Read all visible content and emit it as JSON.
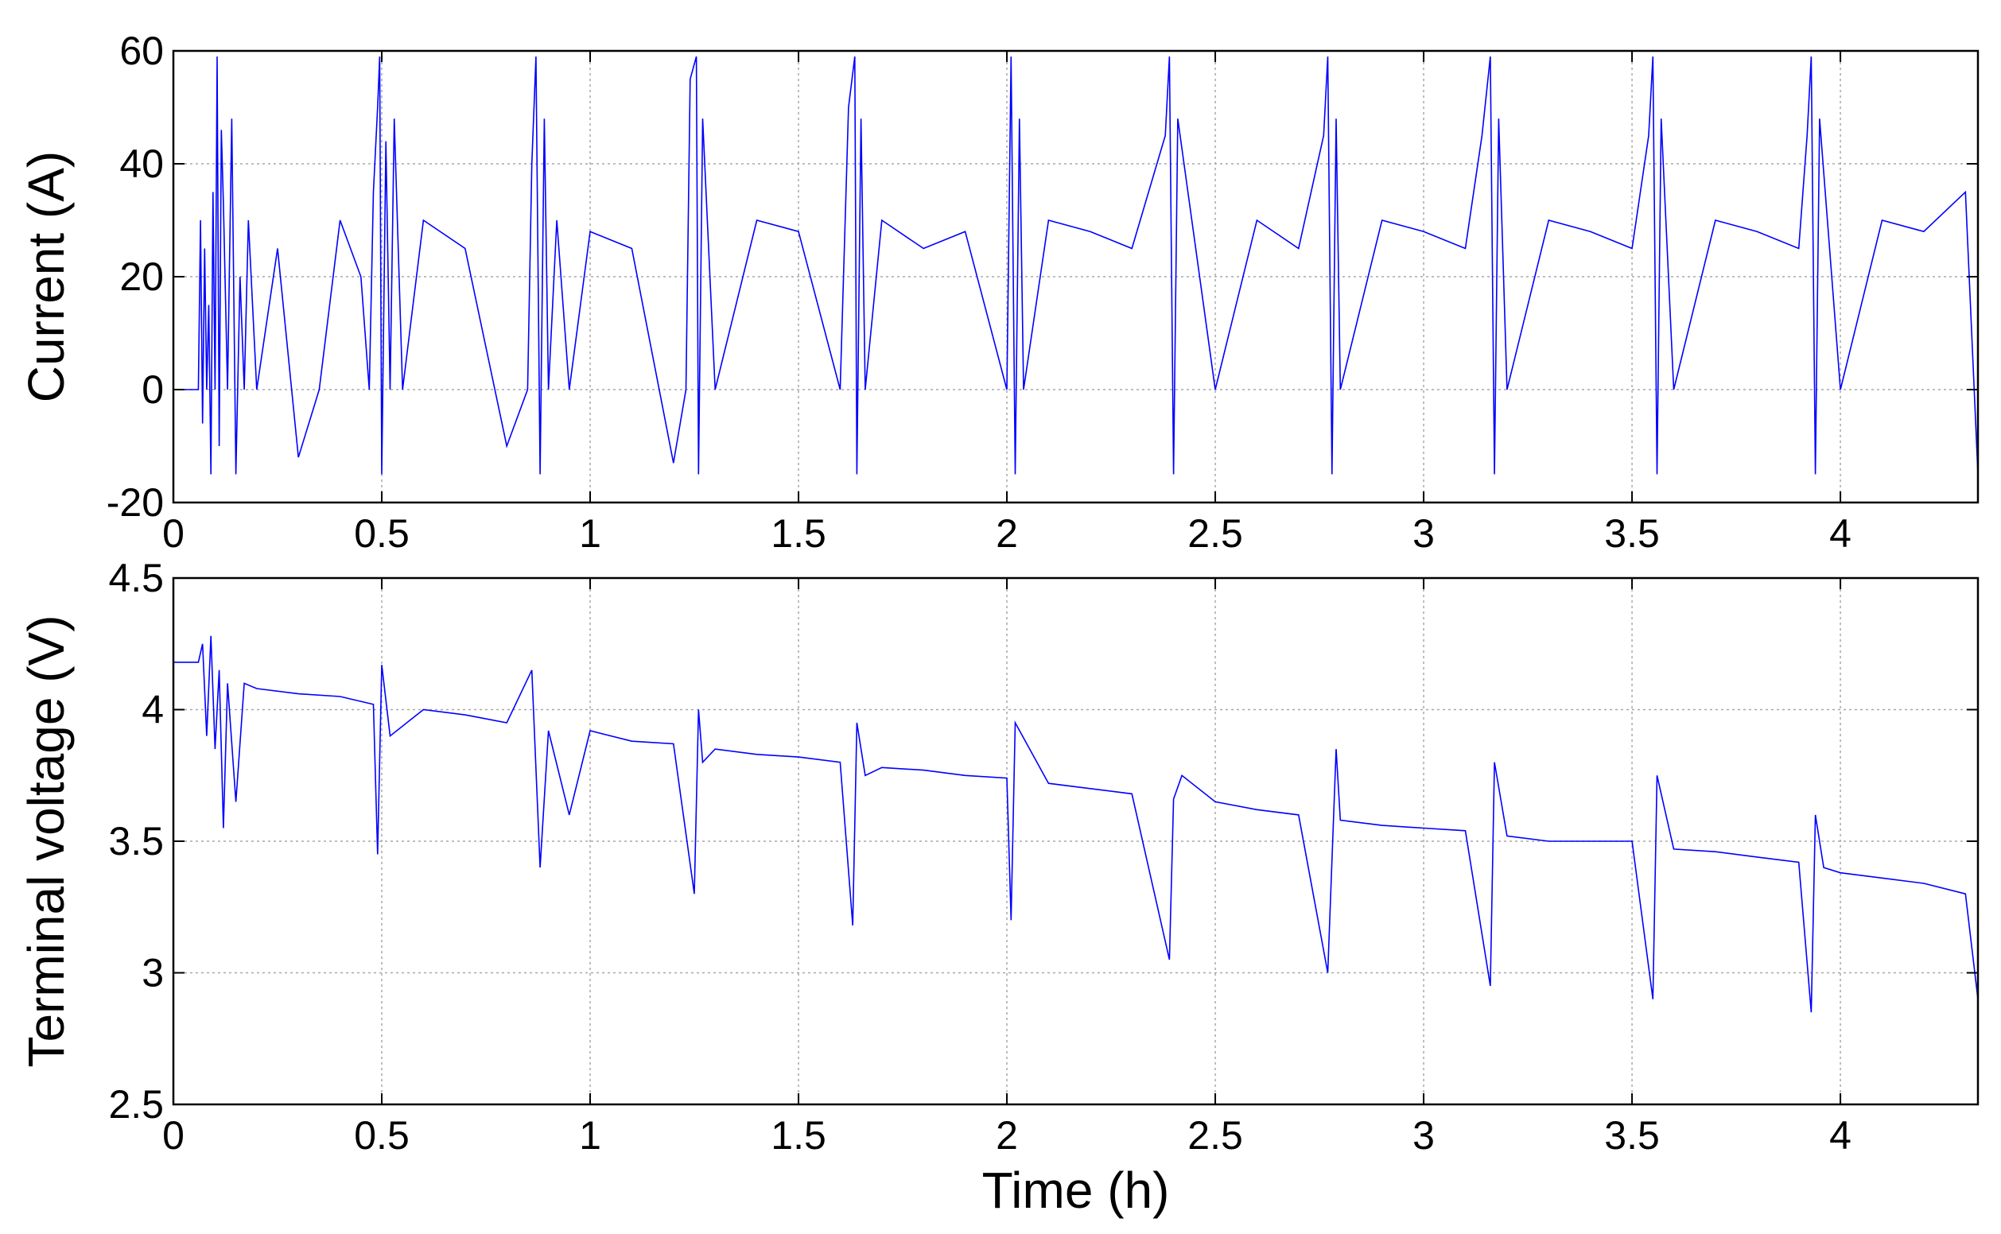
{
  "chart_data": [
    {
      "type": "line",
      "title": "",
      "xlabel": "",
      "ylabel": "Current (A)",
      "xlim": [
        0,
        4.33
      ],
      "ylim": [
        -20,
        60
      ],
      "xticks": [
        0,
        0.5,
        1,
        1.5,
        2,
        2.5,
        3,
        3.5,
        4
      ],
      "xtick_labels": [
        "0",
        "0.5",
        "1",
        "1.5",
        "2",
        "2.5",
        "3",
        "3.5",
        "4"
      ],
      "yticks": [
        -20,
        0,
        20,
        40,
        60
      ],
      "ytick_labels": [
        "-20",
        "0",
        "20",
        "40",
        "60"
      ],
      "grid": true,
      "line_color": "#0000ff",
      "series": [
        {
          "x": [
            0,
            0.06,
            0.065,
            0.07,
            0.075,
            0.08,
            0.085,
            0.09,
            0.095,
            0.1,
            0.105,
            0.11,
            0.115,
            0.12,
            0.13,
            0.14,
            0.15,
            0.16,
            0.17,
            0.18,
            0.2,
            0.25,
            0.3,
            0.35,
            0.4,
            0.45,
            0.47,
            0.48,
            0.49,
            0.495,
            0.5,
            0.51,
            0.52,
            0.53,
            0.55,
            0.6,
            0.7,
            0.8,
            0.85,
            0.86,
            0.87,
            0.88,
            0.89,
            0.9,
            0.92,
            0.95,
            1.0,
            1.1,
            1.2,
            1.23,
            1.24,
            1.255,
            1.26,
            1.27,
            1.3,
            1.4,
            1.5,
            1.6,
            1.62,
            1.635,
            1.64,
            1.65,
            1.66,
            1.7,
            1.8,
            1.9,
            2.0,
            2.01,
            2.02,
            2.03,
            2.04,
            2.1,
            2.2,
            2.3,
            2.38,
            2.39,
            2.4,
            2.41,
            2.5,
            2.6,
            2.7,
            2.76,
            2.77,
            2.78,
            2.79,
            2.8,
            2.9,
            3.0,
            3.1,
            3.14,
            3.16,
            3.17,
            3.18,
            3.2,
            3.3,
            3.4,
            3.5,
            3.54,
            3.55,
            3.56,
            3.57,
            3.6,
            3.7,
            3.8,
            3.9,
            3.92,
            3.93,
            3.94,
            3.95,
            4.0,
            4.1,
            4.2,
            4.3,
            4.33
          ],
          "y": [
            0,
            0,
            30,
            -6,
            25,
            0,
            15,
            -15,
            35,
            0,
            59,
            -10,
            46,
            33,
            0,
            48,
            -15,
            20,
            0,
            30,
            0,
            25,
            -12,
            0,
            30,
            20,
            0,
            35,
            50,
            59,
            -15,
            44,
            0,
            48,
            0,
            30,
            25,
            -10,
            0,
            40,
            59,
            -15,
            48,
            0,
            30,
            0,
            28,
            25,
            -13,
            0,
            55,
            59,
            -15,
            48,
            0,
            30,
            28,
            0,
            50,
            59,
            -15,
            48,
            0,
            30,
            25,
            28,
            0,
            59,
            -15,
            48,
            0,
            30,
            28,
            25,
            45,
            59,
            -15,
            48,
            0,
            30,
            25,
            45,
            59,
            -15,
            48,
            0,
            30,
            28,
            25,
            45,
            59,
            -15,
            48,
            0,
            30,
            28,
            25,
            45,
            59,
            -15,
            48,
            0,
            30,
            28,
            25,
            45,
            59,
            -15,
            48,
            0,
            30,
            28,
            35,
            -15
          ]
        }
      ]
    },
    {
      "type": "line",
      "title": "",
      "xlabel": "Time (h)",
      "ylabel": "Terminal voltage (V)",
      "xlim": [
        0,
        4.33
      ],
      "ylim": [
        2.5,
        4.5
      ],
      "xticks": [
        0,
        0.5,
        1,
        1.5,
        2,
        2.5,
        3,
        3.5,
        4
      ],
      "xtick_labels": [
        "0",
        "0.5",
        "1",
        "1.5",
        "2",
        "2.5",
        "3",
        "3.5",
        "4"
      ],
      "yticks": [
        2.5,
        3,
        3.5,
        4,
        4.5
      ],
      "ytick_labels": [
        "2.5",
        "3",
        "3.5",
        "4",
        "4.5"
      ],
      "grid": true,
      "line_color": "#0000ff",
      "series": [
        {
          "x": [
            0,
            0.06,
            0.07,
            0.08,
            0.09,
            0.1,
            0.11,
            0.12,
            0.13,
            0.15,
            0.17,
            0.2,
            0.3,
            0.4,
            0.48,
            0.49,
            0.5,
            0.52,
            0.6,
            0.7,
            0.8,
            0.86,
            0.88,
            0.9,
            0.95,
            1.0,
            1.1,
            1.2,
            1.25,
            1.26,
            1.27,
            1.3,
            1.4,
            1.5,
            1.6,
            1.63,
            1.64,
            1.66,
            1.7,
            1.8,
            1.9,
            2.0,
            2.01,
            2.02,
            2.1,
            2.2,
            2.3,
            2.39,
            2.4,
            2.42,
            2.5,
            2.6,
            2.7,
            2.77,
            2.79,
            2.8,
            2.9,
            3.0,
            3.1,
            3.16,
            3.17,
            3.2,
            3.3,
            3.4,
            3.5,
            3.55,
            3.56,
            3.6,
            3.7,
            3.8,
            3.9,
            3.93,
            3.94,
            3.96,
            4.0,
            4.1,
            4.2,
            4.3,
            4.33
          ],
          "y": [
            4.18,
            4.18,
            4.25,
            3.9,
            4.28,
            3.85,
            4.15,
            3.55,
            4.1,
            3.65,
            4.1,
            4.08,
            4.06,
            4.05,
            4.02,
            3.45,
            4.17,
            3.9,
            4.0,
            3.98,
            3.95,
            4.15,
            3.4,
            3.92,
            3.6,
            3.92,
            3.88,
            3.87,
            3.3,
            4.0,
            3.8,
            3.85,
            3.83,
            3.82,
            3.8,
            3.18,
            3.95,
            3.75,
            3.78,
            3.77,
            3.75,
            3.74,
            3.2,
            3.95,
            3.72,
            3.7,
            3.68,
            3.05,
            3.66,
            3.75,
            3.65,
            3.62,
            3.6,
            3.0,
            3.85,
            3.58,
            3.56,
            3.55,
            3.54,
            2.95,
            3.8,
            3.52,
            3.5,
            3.5,
            3.5,
            2.9,
            3.75,
            3.47,
            3.46,
            3.44,
            3.42,
            2.85,
            3.6,
            3.4,
            3.38,
            3.36,
            3.34,
            3.3,
            2.9
          ]
        }
      ]
    }
  ]
}
